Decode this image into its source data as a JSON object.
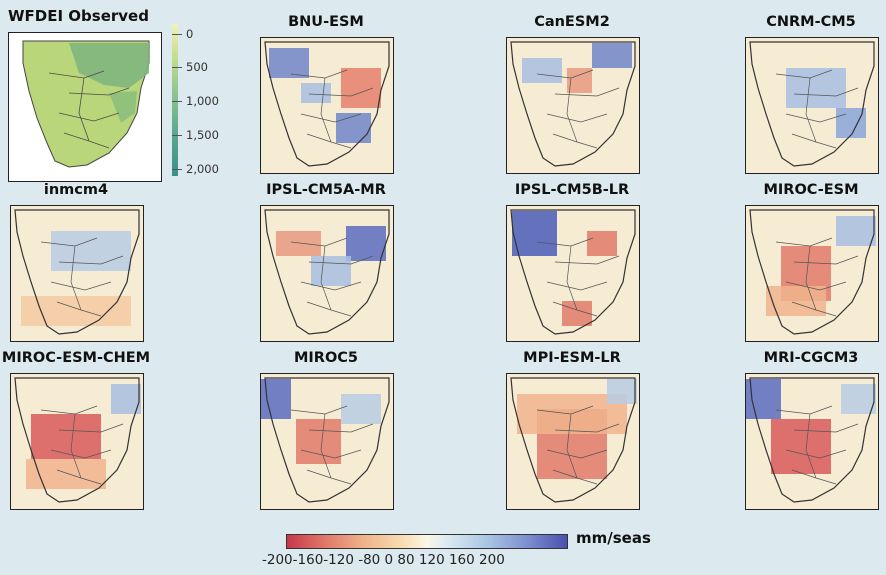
{
  "observed": {
    "title": "WFDEI Observed",
    "legend_ticks": [
      "0",
      "500",
      "1,000",
      "1,500",
      "2,000"
    ],
    "legend_colors": [
      "#eef3b8",
      "#c8e08e",
      "#8fc590",
      "#5aa890",
      "#3a8f88"
    ]
  },
  "models": [
    {
      "title": "BNU-ESM",
      "pattern": "bnu"
    },
    {
      "title": "CanESM2",
      "pattern": "can"
    },
    {
      "title": "CNRM-CM5",
      "pattern": "cnrm"
    },
    {
      "title": "inmcm4",
      "pattern": "inm"
    },
    {
      "title": "IPSL-CM5A-MR",
      "pattern": "ipsla"
    },
    {
      "title": "IPSL-CM5B-LR",
      "pattern": "ipslb"
    },
    {
      "title": "MIROC-ESM",
      "pattern": "mirocesm"
    },
    {
      "title": "MIROC-ESM-CHEM",
      "pattern": "mirocchem"
    },
    {
      "title": "MIROC5",
      "pattern": "miroc5"
    },
    {
      "title": "MPI-ESM-LR",
      "pattern": "mpi"
    },
    {
      "title": "MRI-CGCM3",
      "pattern": "mri"
    }
  ],
  "anomaly_legend": {
    "unit": "mm/seas",
    "ticks": "-200-160-120 -80   0   80  120 160 200",
    "colors": [
      "#c8384a",
      "#e07a6a",
      "#f0b48c",
      "#f8dfb4",
      "#fbf6e8",
      "#d8e8f2",
      "#a8c4e2",
      "#7c8ed0",
      "#4a4fae"
    ]
  }
}
